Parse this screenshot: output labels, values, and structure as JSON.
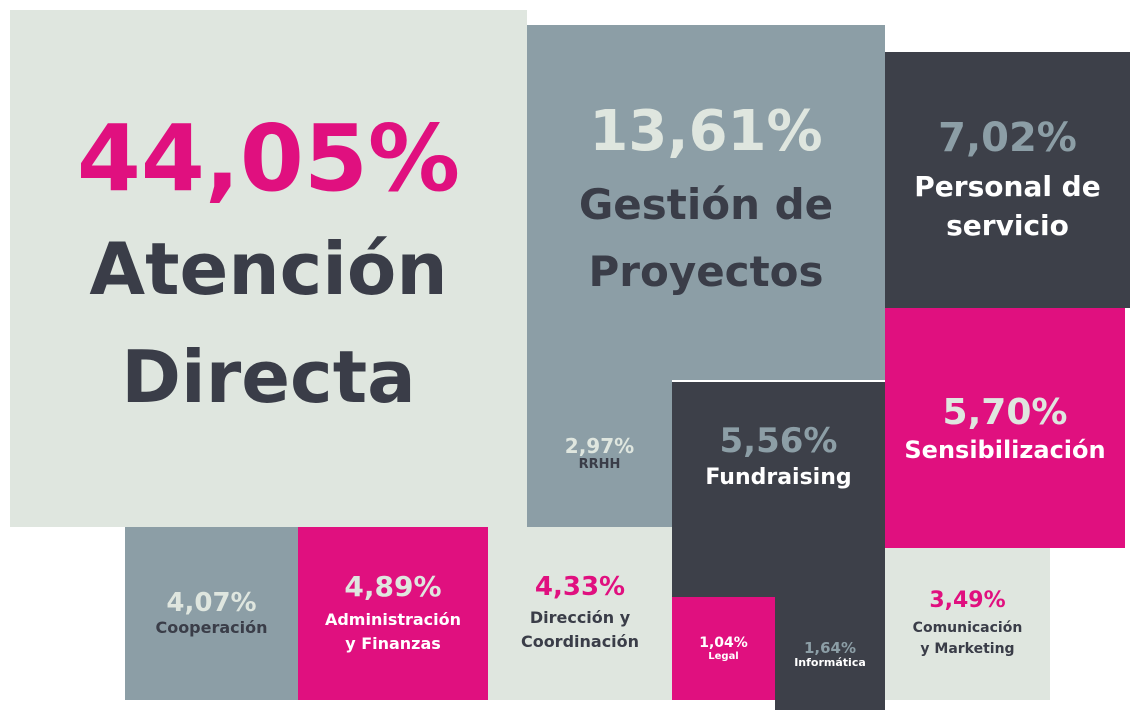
{
  "tiles": [
    {
      "value": "44,05%",
      "lines": [
        "Atención",
        "Directa"
      ]
    },
    {
      "value": "13,61%",
      "lines": [
        "Gestión de",
        "Proyectos"
      ]
    },
    {
      "value": "2,97%",
      "lines": [
        "RRHH"
      ]
    },
    {
      "value": "7,02%",
      "lines": [
        "Personal de",
        "servicio"
      ]
    },
    {
      "value": "5,70%",
      "lines": [
        "Sensibilización"
      ]
    },
    {
      "value": "5,56%",
      "lines": [
        "Fundraising"
      ]
    },
    {
      "value": "4,07%",
      "lines": [
        "Cooperación"
      ]
    },
    {
      "value": "4,89%",
      "lines": [
        "Administración",
        "y Finanzas"
      ]
    },
    {
      "value": "4,33%",
      "lines": [
        "Dirección y",
        "Coordinación"
      ]
    },
    {
      "value": "1,04%",
      "lines": [
        "Legal"
      ]
    },
    {
      "value": "1,64%",
      "lines": [
        "Informática"
      ]
    },
    {
      "value": "3,49%",
      "lines": [
        "Comunicación",
        "y Marketing"
      ]
    }
  ]
}
